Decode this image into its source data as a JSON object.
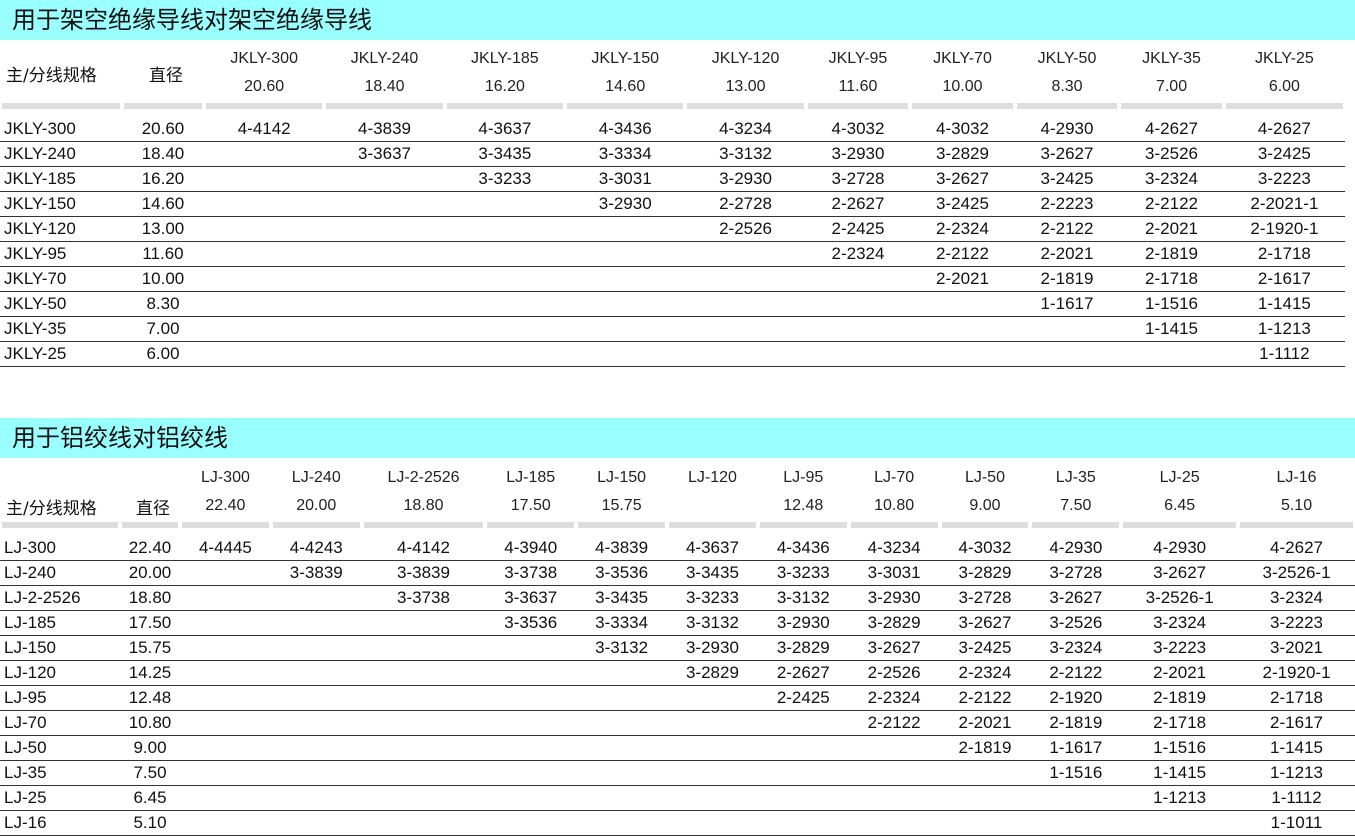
{
  "colors": {
    "title_bar": "#99ffff",
    "row_line": "#333333",
    "header_bar": "#dddddd"
  },
  "tables": [
    {
      "title": "用于架空绝缘导线对架空绝缘导线",
      "spec_header": "主/分线规格",
      "diameter_header": "直径",
      "columns": [
        {
          "spec": "JKLY-300",
          "dia": "20.60"
        },
        {
          "spec": "JKLY-240",
          "dia": "18.40"
        },
        {
          "spec": "JKLY-185",
          "dia": "16.20"
        },
        {
          "spec": "JKLY-150",
          "dia": "14.60"
        },
        {
          "spec": "JKLY-120",
          "dia": "13.00"
        },
        {
          "spec": "JKLY-95",
          "dia": "11.60"
        },
        {
          "spec": "JKLY-70",
          "dia": "10.00"
        },
        {
          "spec": "JKLY-50",
          "dia": "8.30"
        },
        {
          "spec": "JKLY-35",
          "dia": "7.00"
        },
        {
          "spec": "JKLY-25",
          "dia": "6.00"
        }
      ],
      "rows": [
        {
          "spec": "JKLY-300",
          "dia": "20.60",
          "cells": [
            "4-4142",
            "4-3839",
            "4-3637",
            "4-3436",
            "4-3234",
            "4-3032",
            "4-3032",
            "4-2930",
            "4-2627",
            "4-2627"
          ]
        },
        {
          "spec": "JKLY-240",
          "dia": "18.40",
          "cells": [
            "",
            "3-3637",
            "3-3435",
            "3-3334",
            "3-3132",
            "3-2930",
            "3-2829",
            "3-2627",
            "3-2526",
            "3-2425"
          ]
        },
        {
          "spec": "JKLY-185",
          "dia": "16.20",
          "cells": [
            "",
            "",
            "3-3233",
            "3-3031",
            "3-2930",
            "3-2728",
            "3-2627",
            "3-2425",
            "3-2324",
            "3-2223"
          ]
        },
        {
          "spec": "JKLY-150",
          "dia": "14.60",
          "cells": [
            "",
            "",
            "",
            "3-2930",
            "2-2728",
            "2-2627",
            "3-2425",
            "2-2223",
            "2-2122",
            "2-2021-1"
          ]
        },
        {
          "spec": "JKLY-120",
          "dia": "13.00",
          "cells": [
            "",
            "",
            "",
            "",
            "2-2526",
            "2-2425",
            "2-2324",
            "2-2122",
            "2-2021",
            "2-1920-1"
          ]
        },
        {
          "spec": "JKLY-95",
          "dia": "11.60",
          "cells": [
            "",
            "",
            "",
            "",
            "",
            "2-2324",
            "2-2122",
            "2-2021",
            "2-1819",
            "2-1718"
          ]
        },
        {
          "spec": "JKLY-70",
          "dia": "10.00",
          "cells": [
            "",
            "",
            "",
            "",
            "",
            "",
            "2-2021",
            "2-1819",
            "2-1718",
            "2-1617"
          ]
        },
        {
          "spec": "JKLY-50",
          "dia": "8.30",
          "cells": [
            "",
            "",
            "",
            "",
            "",
            "",
            "",
            "1-1617",
            "1-1516",
            "1-1415"
          ]
        },
        {
          "spec": "JKLY-35",
          "dia": "7.00",
          "cells": [
            "",
            "",
            "",
            "",
            "",
            "",
            "",
            "",
            "1-1415",
            "1-1213"
          ]
        },
        {
          "spec": "JKLY-25",
          "dia": "6.00",
          "cells": [
            "",
            "",
            "",
            "",
            "",
            "",
            "",
            "",
            "",
            "1-1112"
          ]
        }
      ]
    },
    {
      "title": "用于铝绞线对铝绞线",
      "spec_header": "主/分线规格",
      "diameter_header": "直径",
      "columns": [
        {
          "spec": "LJ-300",
          "dia": "22.40"
        },
        {
          "spec": "LJ-240",
          "dia": "20.00"
        },
        {
          "spec": "LJ-2-2526",
          "dia": "18.80"
        },
        {
          "spec": "LJ-185",
          "dia": "17.50"
        },
        {
          "spec": "LJ-150",
          "dia": "15.75"
        },
        {
          "spec": "LJ-120",
          "dia": ""
        },
        {
          "spec": "LJ-95",
          "dia": "12.48"
        },
        {
          "spec": "LJ-70",
          "dia": "10.80"
        },
        {
          "spec": "LJ-50",
          "dia": "9.00"
        },
        {
          "spec": "LJ-35",
          "dia": "7.50"
        },
        {
          "spec": "LJ-25",
          "dia": "6.45"
        },
        {
          "spec": "LJ-16",
          "dia": "5.10"
        }
      ],
      "rows": [
        {
          "spec": "LJ-300",
          "dia": "22.40",
          "cells": [
            "4-4445",
            "4-4243",
            "4-4142",
            "4-3940",
            "4-3839",
            "4-3637",
            "4-3436",
            "4-3234",
            "4-3032",
            "4-2930",
            "4-2930",
            "4-2627"
          ]
        },
        {
          "spec": "LJ-240",
          "dia": "20.00",
          "cells": [
            "",
            "3-3839",
            "3-3839",
            "3-3738",
            "3-3536",
            "3-3435",
            "3-3233",
            "3-3031",
            "3-2829",
            "3-2728",
            "3-2627",
            "3-2526-1"
          ]
        },
        {
          "spec": "LJ-2-2526",
          "dia": "18.80",
          "cells": [
            "",
            "",
            "3-3738",
            "3-3637",
            "3-3435",
            "3-3233",
            "3-3132",
            "3-2930",
            "3-2728",
            "3-2627",
            "3-2526-1",
            "3-2324"
          ]
        },
        {
          "spec": "LJ-185",
          "dia": "17.50",
          "cells": [
            "",
            "",
            "",
            "3-3536",
            "3-3334",
            "3-3132",
            "3-2930",
            "3-2829",
            "3-2627",
            "3-2526",
            "3-2324",
            "3-2223"
          ]
        },
        {
          "spec": "LJ-150",
          "dia": "15.75",
          "cells": [
            "",
            "",
            "",
            "",
            "3-3132",
            "3-2930",
            "3-2829",
            "3-2627",
            "3-2425",
            "3-2324",
            "3-2223",
            "3-2021"
          ]
        },
        {
          "spec": "LJ-120",
          "dia": "14.25",
          "cells": [
            "",
            "",
            "",
            "",
            "",
            "3-2829",
            "2-2627",
            "2-2526",
            "2-2324",
            "2-2122",
            "2-2021",
            "2-1920-1"
          ]
        },
        {
          "spec": "LJ-95",
          "dia": "12.48",
          "cells": [
            "",
            "",
            "",
            "",
            "",
            "",
            "2-2425",
            "2-2324",
            "2-2122",
            "2-1920",
            "2-1819",
            "2-1718"
          ]
        },
        {
          "spec": "LJ-70",
          "dia": "10.80",
          "cells": [
            "",
            "",
            "",
            "",
            "",
            "",
            "",
            "2-2122",
            "2-2021",
            "2-1819",
            "2-1718",
            "2-1617"
          ]
        },
        {
          "spec": "LJ-50",
          "dia": "9.00",
          "cells": [
            "",
            "",
            "",
            "",
            "",
            "",
            "",
            "",
            "2-1819",
            "1-1617",
            "1-1516",
            "1-1415"
          ]
        },
        {
          "spec": "LJ-35",
          "dia": "7.50",
          "cells": [
            "",
            "",
            "",
            "",
            "",
            "",
            "",
            "",
            "",
            "1-1516",
            "1-1415",
            "1-1213"
          ]
        },
        {
          "spec": "LJ-25",
          "dia": "6.45",
          "cells": [
            "",
            "",
            "",
            "",
            "",
            "",
            "",
            "",
            "",
            "",
            "1-1213",
            "1-1112"
          ]
        },
        {
          "spec": "LJ-16",
          "dia": "5.10",
          "cells": [
            "",
            "",
            "",
            "",
            "",
            "",
            "",
            "",
            "",
            "",
            "",
            "1-1011"
          ]
        }
      ]
    }
  ]
}
